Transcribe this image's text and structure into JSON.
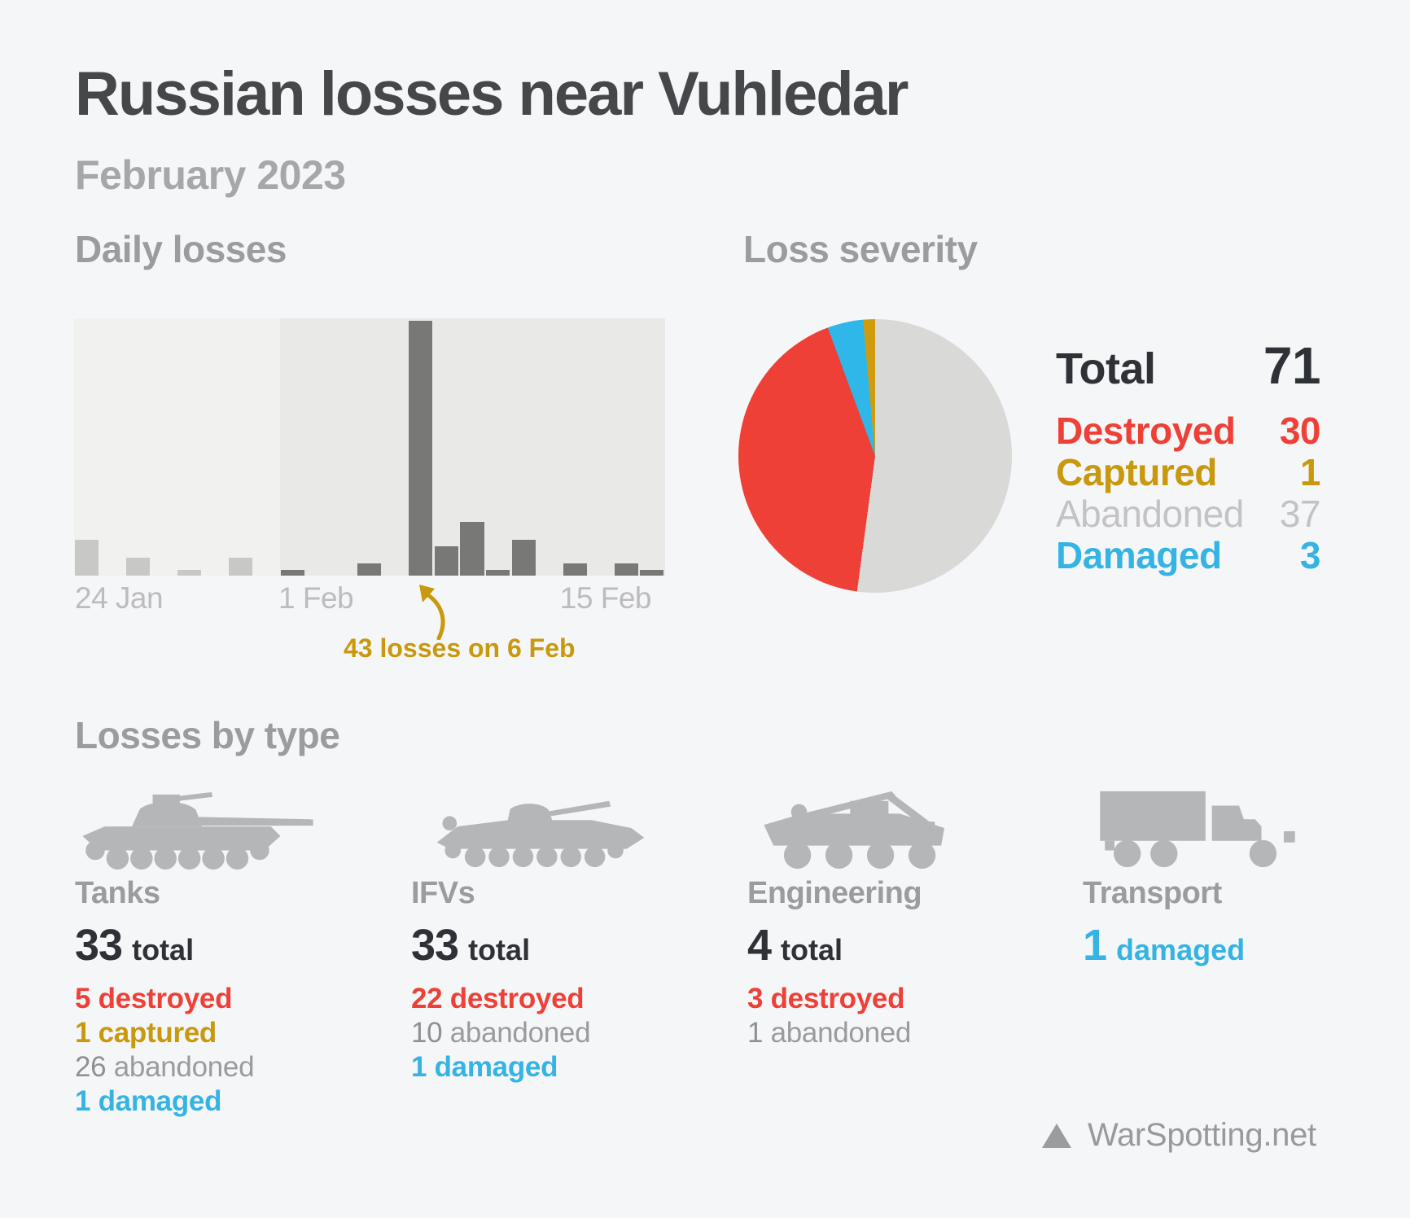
{
  "header": {
    "title": "Russian losses near Vuhledar",
    "subtitle": "February 2023"
  },
  "daily": {
    "section_title": "Daily losses",
    "axis_labels": {
      "start": "24 Jan",
      "feb_start": "1 Feb",
      "end": "15 Feb"
    },
    "annotation": "43 losses on 6 Feb"
  },
  "severity": {
    "section_title": "Loss severity",
    "legend": [
      {
        "key": "total",
        "label": "Total",
        "value": "71"
      },
      {
        "key": "destroyed",
        "label": "Destroyed",
        "value": "30"
      },
      {
        "key": "captured",
        "label": "Captured",
        "value": "1"
      },
      {
        "key": "abandoned",
        "label": "Abandoned",
        "value": "37"
      },
      {
        "key": "damaged",
        "label": "Damaged",
        "value": "3"
      }
    ]
  },
  "types": {
    "section_title": "Losses by type",
    "cards": [
      {
        "id": "tanks",
        "name": "Tanks",
        "icon": "tank-icon",
        "total": {
          "value": "33",
          "label": "total",
          "key": "total"
        },
        "stats": [
          {
            "value": "5",
            "label": "destroyed",
            "key": "destroyed"
          },
          {
            "value": "1",
            "label": "captured",
            "key": "captured"
          },
          {
            "value": "26",
            "label": "abandoned",
            "key": "abandoned"
          },
          {
            "value": "1",
            "label": "damaged",
            "key": "damaged"
          }
        ]
      },
      {
        "id": "ifvs",
        "name": "IFVs",
        "icon": "ifv-icon",
        "total": {
          "value": "33",
          "label": "total",
          "key": "total"
        },
        "stats": [
          {
            "value": "22",
            "label": "destroyed",
            "key": "destroyed"
          },
          {
            "value": "10",
            "label": "abandoned",
            "key": "abandoned"
          },
          {
            "value": "1",
            "label": "damaged",
            "key": "damaged"
          }
        ]
      },
      {
        "id": "engineering",
        "name": "Engineering",
        "icon": "engineering-vehicle-icon",
        "total": {
          "value": "4",
          "label": "total",
          "key": "total"
        },
        "stats": [
          {
            "value": "3",
            "label": "destroyed",
            "key": "destroyed"
          },
          {
            "value": "1",
            "label": "abandoned",
            "key": "abandoned"
          }
        ]
      },
      {
        "id": "transport",
        "name": "Transport",
        "icon": "truck-icon",
        "total": {
          "value": "1",
          "label": "damaged",
          "key": "damaged"
        },
        "stats": []
      }
    ]
  },
  "footer": {
    "brand": "WarSpotting.net",
    "logo": "warspotting-triangle-logo"
  },
  "colors": {
    "background": "#f5f6f8",
    "title_text": "#46474a",
    "muted_text": "#9b9c9f",
    "dark_text": "#2e3236",
    "destroyed": "#ee4036",
    "captured": "#c8980d",
    "damaged": "#35b4e4",
    "abandoned": "#c3c3c4",
    "bar_january": "#c8c8c7",
    "bar_february": "#787876",
    "pie_abandoned": "#d9d9d7",
    "pie_destroyed": "#ee4036",
    "pie_damaged": "#2fb7e9",
    "pie_captured": "#d09c0e"
  },
  "chart_data": [
    {
      "type": "bar",
      "title": "Daily losses",
      "x": [
        "24 Jan",
        "25 Jan",
        "26 Jan",
        "27 Jan",
        "28 Jan",
        "29 Jan",
        "30 Jan",
        "31 Jan",
        "1 Feb",
        "2 Feb",
        "3 Feb",
        "4 Feb",
        "5 Feb",
        "6 Feb",
        "7 Feb",
        "8 Feb",
        "9 Feb",
        "10 Feb",
        "11 Feb",
        "12 Feb",
        "13 Feb",
        "14 Feb",
        "15 Feb"
      ],
      "values": [
        6,
        0,
        3,
        0,
        1,
        0,
        3,
        0,
        1,
        0,
        0,
        2,
        0,
        43,
        5,
        9,
        1,
        6,
        0,
        2,
        0,
        2,
        1
      ],
      "month_split_index": 8,
      "ylim": [
        0,
        43.5
      ],
      "xlabel": "",
      "ylabel": "",
      "grid": false,
      "legend": false,
      "tick_labels_shown": [
        "24 Jan",
        "1 Feb",
        "15 Feb"
      ],
      "annotation": {
        "text": "43 losses on 6 Feb",
        "x": "6 Feb",
        "value": 43
      }
    },
    {
      "type": "pie",
      "title": "Loss severity",
      "labels": [
        "Abandoned",
        "Destroyed",
        "Damaged",
        "Captured"
      ],
      "values": [
        37,
        30,
        3,
        1
      ],
      "colors": [
        "#d9d9d7",
        "#ee4036",
        "#2fb7e9",
        "#d09c0e"
      ],
      "total": 71,
      "start_angle": "12 o'clock",
      "direction": "clockwise",
      "legend_position": "right",
      "legend_order": [
        "Total",
        "Destroyed",
        "Captured",
        "Abandoned",
        "Damaged"
      ]
    }
  ]
}
